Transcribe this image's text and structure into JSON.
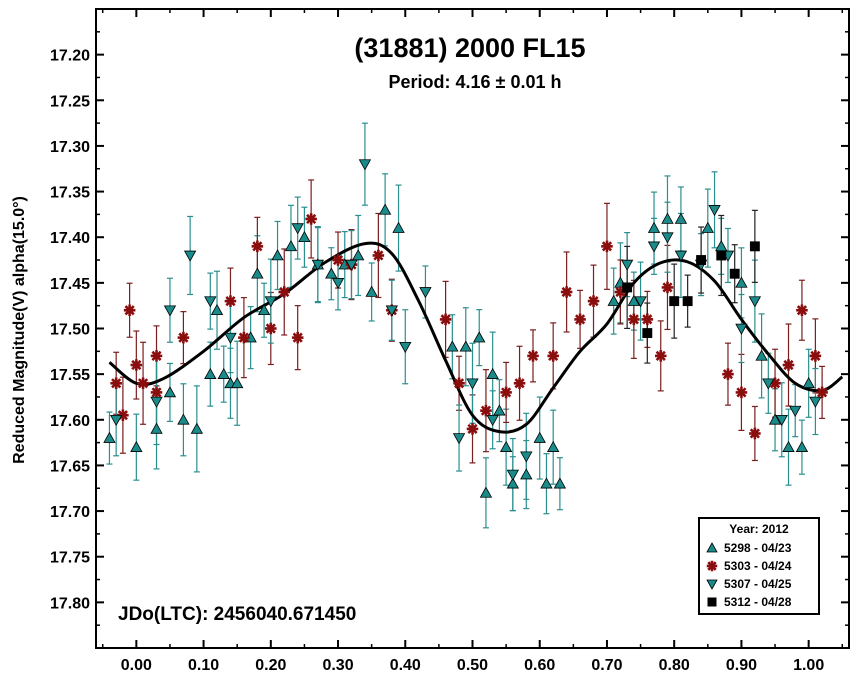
{
  "chart_data": {
    "type": "scatter",
    "title": "(31881) 2000 FL15",
    "subtitle": "Period: 4.16 ± 0.01 h",
    "xlabel": "",
    "ylabel": "Reduced Magnitude(V) alpha(15.0°)",
    "xlim": [
      -0.06,
      1.06
    ],
    "ylim": [
      17.85,
      17.15
    ],
    "y_inverted": true,
    "x_ticks": [
      0.0,
      0.1,
      0.2,
      0.3,
      0.4,
      0.5,
      0.6,
      0.7,
      0.8,
      0.9,
      1.0
    ],
    "x_tick_labels": [
      "0.00",
      "0.10",
      "0.20",
      "0.30",
      "0.40",
      "0.50",
      "0.60",
      "0.70",
      "0.80",
      "0.90",
      "1.00"
    ],
    "y_ticks": [
      17.2,
      17.25,
      17.3,
      17.35,
      17.4,
      17.45,
      17.5,
      17.55,
      17.6,
      17.65,
      17.7,
      17.75,
      17.8
    ],
    "y_tick_labels": [
      "17.20",
      "17.25",
      "17.30",
      "17.35",
      "17.40",
      "17.45",
      "17.50",
      "17.55",
      "17.60",
      "17.65",
      "17.70",
      "17.75",
      "17.80"
    ],
    "annotation": "JDo(LTC): 2456040.671450",
    "legend": {
      "title": "Year: 2012",
      "placement": "bottom-right"
    },
    "fit_curve": {
      "color": "#000000",
      "x": [
        -0.04,
        0.0,
        0.04,
        0.1,
        0.16,
        0.22,
        0.28,
        0.34,
        0.38,
        0.42,
        0.46,
        0.5,
        0.54,
        0.58,
        0.62,
        0.66,
        0.7,
        0.74,
        0.78,
        0.82,
        0.86,
        0.9,
        0.94,
        0.98,
        1.02,
        1.05
      ],
      "y": [
        17.537,
        17.56,
        17.555,
        17.525,
        17.488,
        17.462,
        17.428,
        17.407,
        17.418,
        17.47,
        17.535,
        17.595,
        17.613,
        17.605,
        17.565,
        17.525,
        17.495,
        17.45,
        17.428,
        17.427,
        17.448,
        17.49,
        17.528,
        17.56,
        17.568,
        17.553
      ]
    },
    "series": [
      {
        "name": "5298 - 04/23",
        "marker": "triangle-up",
        "color": "#1a8a8a",
        "x": [
          -0.04,
          0.0,
          0.03,
          0.05,
          0.07,
          0.09,
          0.11,
          0.12,
          0.13,
          0.14,
          0.15,
          0.17,
          0.18,
          0.19,
          0.21,
          0.23,
          0.25,
          0.27,
          0.29,
          0.31,
          0.33,
          0.35,
          0.37,
          0.39,
          0.47,
          0.49,
          0.51,
          0.52,
          0.53,
          0.54,
          0.55,
          0.56,
          0.58,
          0.6,
          0.61,
          0.62,
          0.63,
          0.71,
          0.72,
          0.74,
          0.77,
          0.79,
          0.81,
          0.85,
          0.87,
          0.9,
          0.93,
          0.95,
          0.97,
          0.99,
          1.0
        ],
        "y": [
          17.62,
          17.63,
          17.61,
          17.57,
          17.6,
          17.61,
          17.55,
          17.48,
          17.55,
          17.56,
          17.56,
          17.51,
          17.44,
          17.48,
          17.42,
          17.41,
          17.4,
          17.43,
          17.44,
          17.43,
          17.42,
          17.46,
          17.37,
          17.39,
          17.52,
          17.52,
          17.51,
          17.68,
          17.55,
          17.59,
          17.63,
          17.67,
          17.66,
          17.62,
          17.67,
          17.63,
          17.67,
          17.47,
          17.45,
          17.47,
          17.39,
          17.38,
          17.38,
          17.39,
          17.41,
          17.45,
          17.53,
          17.6,
          17.63,
          17.63,
          17.56
        ]
      },
      {
        "name": "5303 - 04/24",
        "marker": "asterisk",
        "color": "#8b0e0e",
        "x": [
          -0.03,
          -0.02,
          -0.01,
          0.0,
          0.01,
          0.03,
          0.03,
          0.07,
          0.14,
          0.16,
          0.18,
          0.2,
          0.22,
          0.24,
          0.26,
          0.3,
          0.32,
          0.36,
          0.38,
          0.46,
          0.48,
          0.5,
          0.52,
          0.55,
          0.57,
          0.59,
          0.62,
          0.64,
          0.66,
          0.68,
          0.7,
          0.72,
          0.74,
          0.76,
          0.78,
          0.79,
          0.88,
          0.9,
          0.92,
          0.95,
          0.97,
          0.99,
          1.01,
          1.02
        ],
        "y": [
          17.56,
          17.595,
          17.48,
          17.54,
          17.56,
          17.53,
          17.57,
          17.51,
          17.47,
          17.51,
          17.41,
          17.5,
          17.46,
          17.51,
          17.38,
          17.425,
          17.43,
          17.42,
          17.48,
          17.49,
          17.56,
          17.61,
          17.59,
          17.57,
          17.56,
          17.53,
          17.53,
          17.46,
          17.49,
          17.47,
          17.41,
          17.46,
          17.49,
          17.49,
          17.53,
          17.455,
          17.55,
          17.57,
          17.615,
          17.56,
          17.54,
          17.48,
          17.53,
          17.57
        ]
      },
      {
        "name": "5307 - 04/25",
        "marker": "triangle-down",
        "color": "#1a8a8a",
        "x": [
          -0.03,
          0.03,
          0.05,
          0.08,
          0.11,
          0.14,
          0.2,
          0.24,
          0.27,
          0.3,
          0.32,
          0.34,
          0.38,
          0.4,
          0.43,
          0.48,
          0.5,
          0.53,
          0.56,
          0.58,
          0.73,
          0.75,
          0.77,
          0.79,
          0.81,
          0.84,
          0.86,
          0.88,
          0.9,
          0.92,
          0.94,
          0.96,
          0.98,
          1.01
        ],
        "y": [
          17.6,
          17.58,
          17.48,
          17.42,
          17.47,
          17.51,
          17.47,
          17.39,
          17.43,
          17.45,
          17.43,
          17.32,
          17.48,
          17.52,
          17.46,
          17.62,
          17.56,
          17.6,
          17.66,
          17.64,
          17.43,
          17.47,
          17.41,
          17.4,
          17.42,
          17.43,
          17.37,
          17.42,
          17.5,
          17.47,
          17.56,
          17.6,
          17.59,
          17.58
        ]
      },
      {
        "name": "5312 - 04/28",
        "marker": "square",
        "color": "#000000",
        "x": [
          0.73,
          0.76,
          0.8,
          0.82,
          0.84,
          0.87,
          0.89,
          0.92
        ],
        "y": [
          17.455,
          17.505,
          17.47,
          17.47,
          17.425,
          17.42,
          17.44,
          17.41
        ]
      }
    ]
  }
}
